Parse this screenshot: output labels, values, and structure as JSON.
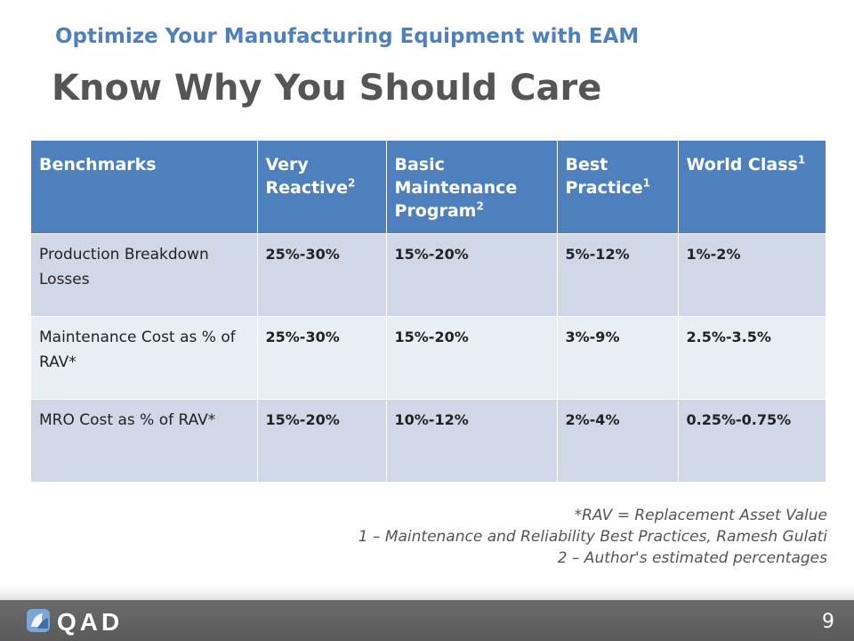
{
  "slide": {
    "subtitle": "Optimize Your Manufacturing Equipment with EAM",
    "title": "Know Why You Should Care"
  },
  "table": {
    "headers": [
      {
        "text": "Benchmarks",
        "sup": ""
      },
      {
        "text": "Very Reactive",
        "sup": "2"
      },
      {
        "text": "Basic Maintenance Program",
        "sup": "2"
      },
      {
        "text": "Best Practice",
        "sup": "1"
      },
      {
        "text": "World Class",
        "sup": "1"
      }
    ],
    "rows": [
      {
        "label": "Production Breakdown Losses",
        "values": [
          "25%-30%",
          "15%-20%",
          "5%-12%",
          "1%-2%"
        ]
      },
      {
        "label": "Maintenance Cost as % of RAV*",
        "values": [
          "25%-30%",
          "15%-20%",
          "3%-9%",
          "2.5%-3.5%"
        ]
      },
      {
        "label": "MRO Cost as % of RAV*",
        "values": [
          "15%-20%",
          "10%-12%",
          "2%-4%",
          "0.25%-0.75%"
        ]
      }
    ]
  },
  "notes": [
    "*RAV = Replacement Asset Value",
    "1 – Maintenance and Reliability Best Practices, Ramesh Gulati",
    "2 – Author's estimated percentages"
  ],
  "footer": {
    "logo_text": "QAD",
    "page_number": "9"
  },
  "colors": {
    "accent": "#4e80bd",
    "row_dark": "#d0d8e8",
    "row_light": "#e9edf4",
    "footer": "#5f5f5f"
  }
}
